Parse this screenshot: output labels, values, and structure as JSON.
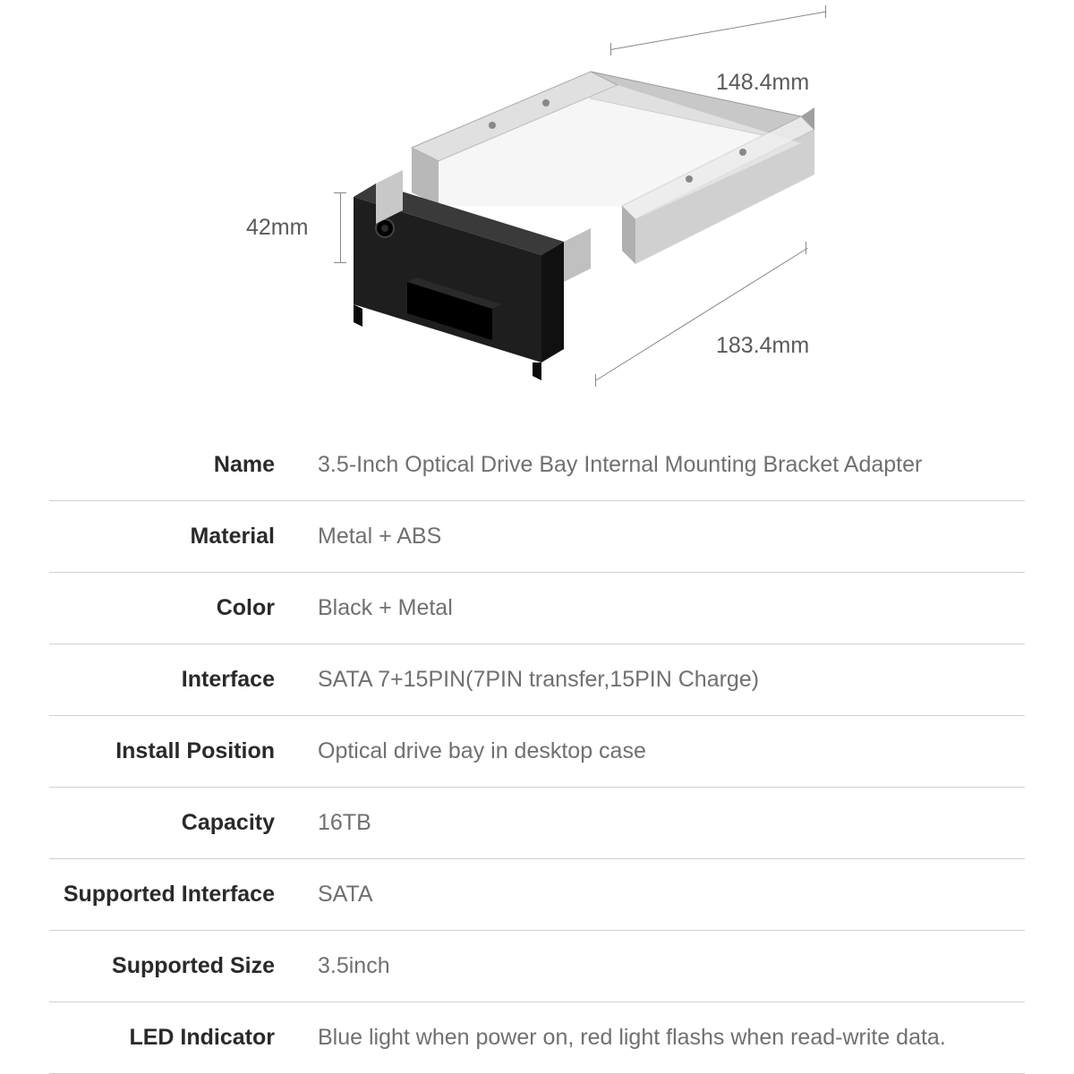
{
  "dimensions": {
    "width": "148.4mm",
    "depth": "183.4mm",
    "height": "42mm"
  },
  "specs": [
    {
      "label": "Name",
      "value": "3.5-Inch Optical Drive Bay Internal Mounting Bracket Adapter"
    },
    {
      "label": "Material",
      "value": "Metal + ABS"
    },
    {
      "label": "Color",
      "value": "Black + Metal"
    },
    {
      "label": "Interface",
      "value": "SATA 7+15PIN(7PIN transfer,15PIN Charge)"
    },
    {
      "label": "Install Position",
      "value": "Optical drive bay in desktop case"
    },
    {
      "label": "Capacity",
      "value": "16TB"
    },
    {
      "label": "Supported Interface",
      "value": "SATA"
    },
    {
      "label": "Supported Size",
      "value": "3.5inch"
    },
    {
      "label": "LED Indicator",
      "value": "Blue light when power on, red light flashs when read-write data."
    }
  ],
  "style": {
    "label_color": "#2a2a2a",
    "value_color": "#707070",
    "dim_color": "#5a5a5a",
    "divider_color": "#d0d0d0",
    "background": "#ffffff",
    "font_size_spec": 25,
    "font_size_dim": 25,
    "product_colors": {
      "black_panel": "#1a1a1a",
      "black_panel_light": "#3a3a3a",
      "metal_light": "#d8d8d8",
      "metal_mid": "#b0b0b0",
      "metal_dark": "#888888",
      "metal_shadow": "#606060"
    }
  }
}
